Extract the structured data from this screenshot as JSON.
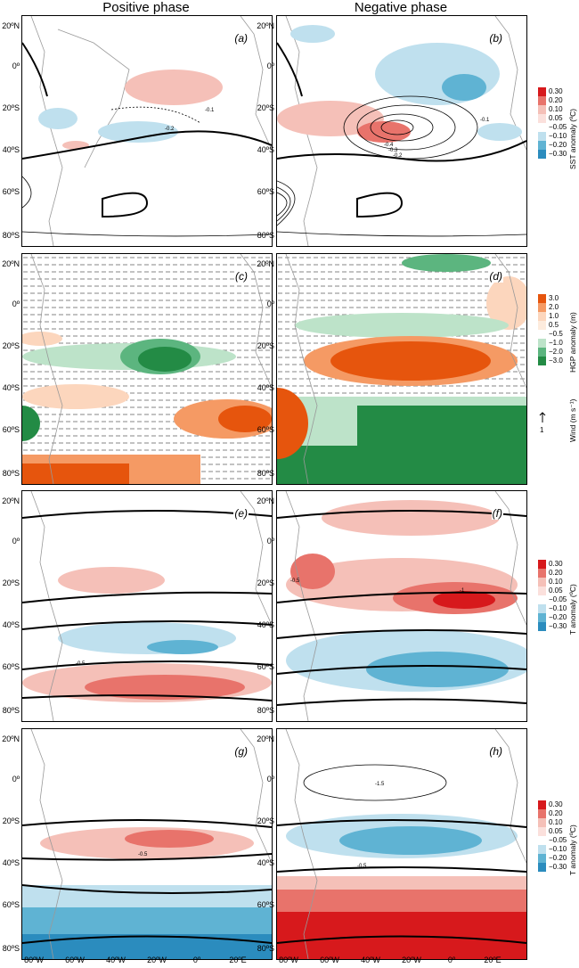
{
  "columns": {
    "positive": "Positive phase",
    "negative": "Negative phase"
  },
  "panels": [
    {
      "id": "a",
      "label": "(a)"
    },
    {
      "id": "b",
      "label": "(b)"
    },
    {
      "id": "c",
      "label": "(c)"
    },
    {
      "id": "d",
      "label": "(d)"
    },
    {
      "id": "e",
      "label": "(e)"
    },
    {
      "id": "f",
      "label": "(f)"
    },
    {
      "id": "g",
      "label": "(g)"
    },
    {
      "id": "h",
      "label": "(h)"
    }
  ],
  "lat_labels": [
    "20ºN",
    "0º",
    "20ºS",
    "40ºS",
    "60ºS",
    "80ºS"
  ],
  "lon_labels": [
    "80ºW",
    "60ºW",
    "40ºW",
    "20ºW",
    "0º",
    "20ºE"
  ],
  "colorbars": {
    "sst": {
      "title": "SST anomaly (ºC)",
      "ticks": [
        "0.30",
        "0.20",
        "0.10",
        "0.05",
        "−0.05",
        "−0.10",
        "−0.20",
        "−0.30"
      ]
    },
    "hgp": {
      "title": "HGP anomaly (m)",
      "ticks": [
        "3.0",
        "2.0",
        "1.0",
        "0.5",
        "−0.5",
        "−1.0",
        "−2.0",
        "−3.0"
      ]
    },
    "wind": {
      "title": "Wind (m s⁻¹)",
      "scale": "1"
    },
    "t1": {
      "title": "T anomaly (ºC)",
      "ticks": [
        "0.30",
        "0.20",
        "0.10",
        "0.05",
        "−0.05",
        "−0.10",
        "−0.20",
        "−0.30"
      ]
    },
    "t2": {
      "title": "T anomaly (ºC)",
      "ticks": [
        "0.30",
        "0.20",
        "0.10",
        "0.05",
        "−0.05",
        "−0.10",
        "−0.20",
        "−0.30"
      ]
    }
  },
  "contour_labels": {
    "a1": "-0.1",
    "a2": "-0.2",
    "b1": "-0.4",
    "b2": "-0.3",
    "b3": "-0.2",
    "b4": "-0.1",
    "e1": "-0.5",
    "f1": "-0.5",
    "f2": "-1",
    "g1": "-0.5",
    "h1": "-1.5",
    "h2": "-0.5"
  },
  "colors": {
    "red_strong": "#d7191c",
    "red": "#e8736b",
    "red_light": "#f5c0b8",
    "blue_light": "#bfe0ee",
    "blue": "#5fb3d3",
    "blue_strong": "#2b8cbe",
    "orange_strong": "#e6550d",
    "orange": "#f59a64",
    "orange_light": "#fcd6bd",
    "green_light": "#bde3c9",
    "green": "#5cb57f",
    "green_strong": "#238b45"
  }
}
